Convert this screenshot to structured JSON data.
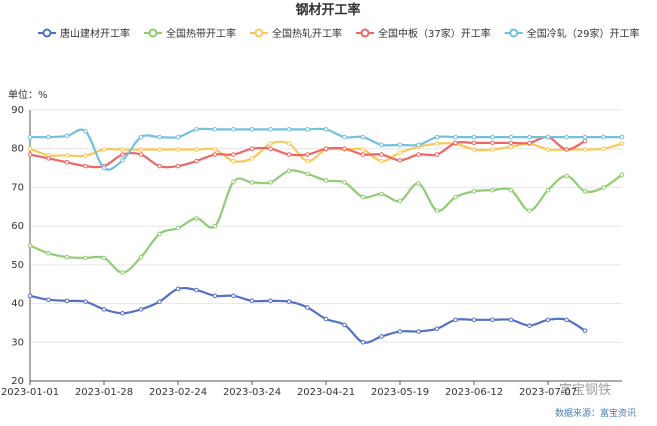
{
  "chart_data": {
    "type": "line",
    "title": "钢材开工率",
    "y_unit_label": "单位：%",
    "source": "数据来源：富宝资讯",
    "watermark": "富宝钢铁",
    "categories": [
      "2023-01-01",
      null,
      null,
      null,
      "2023-01-28",
      null,
      null,
      null,
      "2023-02-24",
      null,
      null,
      null,
      "2023-03-24",
      null,
      null,
      null,
      "2023-04-21",
      null,
      null,
      null,
      "2023-05-19",
      null,
      null,
      null,
      "2023-06-12",
      null,
      null,
      null,
      "2023-07-07",
      null,
      null,
      null,
      null
    ],
    "ylim": [
      20,
      90
    ],
    "yticks": [
      20,
      30,
      40,
      50,
      60,
      70,
      80,
      90
    ],
    "grid": true,
    "smooth": true,
    "series": [
      {
        "name": "唐山建材开工率",
        "color": "#5470c6",
        "values": [
          42,
          41,
          40.7,
          40.5,
          38.5,
          37.5,
          38.5,
          40.5,
          43.8,
          43.5,
          42,
          42,
          40.7,
          40.7,
          40.5,
          39,
          36,
          34.5,
          30,
          31.5,
          32.8,
          32.8,
          33.5,
          35.8,
          35.8,
          35.8,
          35.8,
          34.3,
          35.8,
          35.8,
          33,
          null,
          null
        ]
      },
      {
        "name": "全国热带开工率",
        "color": "#91cc75",
        "values": [
          55,
          53,
          52,
          51.8,
          51.8,
          48,
          52,
          58,
          59.5,
          62,
          60,
          71.5,
          71.3,
          71.3,
          74.3,
          73.5,
          71.8,
          71.3,
          67.5,
          68.3,
          66.5,
          71,
          64,
          67.5,
          69,
          69.3,
          69.3,
          64,
          69.3,
          73,
          69,
          70,
          73.3
        ]
      },
      {
        "name": "全国热轧开工率",
        "color": "#fac858",
        "values": [
          80,
          78.3,
          78.3,
          78.2,
          79.8,
          79.8,
          79.8,
          79.8,
          79.8,
          79.8,
          79.8,
          76.8,
          77.5,
          81.3,
          81.3,
          76.8,
          79.8,
          79.8,
          79.8,
          76.8,
          79,
          80.5,
          81.3,
          81.3,
          79.8,
          79.8,
          80.5,
          81.3,
          79.8,
          79.8,
          79.8,
          80,
          81.3
        ]
      },
      {
        "name": "全国中板（37家）开工率",
        "color": "#ee6666",
        "values": [
          78.5,
          77.5,
          76.5,
          75.5,
          75.5,
          78.5,
          78.5,
          75.5,
          75.5,
          76.8,
          78.5,
          78.5,
          80,
          80,
          78.5,
          78.5,
          80,
          80,
          78.5,
          78.5,
          77,
          78.5,
          78.5,
          81.5,
          81.5,
          81.5,
          81.5,
          81.5,
          83,
          79.8,
          82,
          null,
          null
        ]
      },
      {
        "name": "全国冷轧（29家）开工率",
        "color": "#73c0de",
        "values": [
          83,
          83,
          83.3,
          84.5,
          75,
          77,
          83,
          83,
          83,
          85,
          85,
          85,
          85,
          85,
          85,
          85,
          85,
          83,
          83,
          81,
          81,
          81,
          83,
          83,
          83,
          83,
          83,
          83,
          83,
          83,
          83,
          83,
          83
        ]
      }
    ]
  }
}
